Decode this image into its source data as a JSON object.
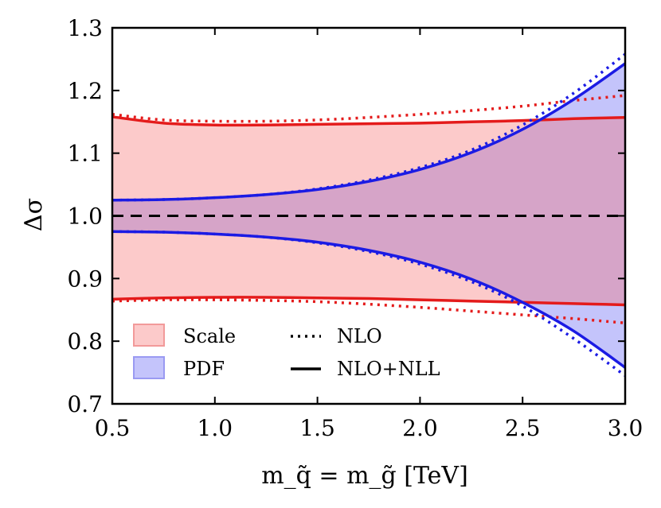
{
  "chart_data": {
    "type": "area",
    "xlabel": "m_q̃ = m_g̃ [TeV]",
    "ylabel": "Δσ",
    "xlim": [
      0.5,
      3.0
    ],
    "ylim": [
      0.7,
      1.3
    ],
    "x_ticks": [
      "0.5",
      "1.0",
      "1.5",
      "2.0",
      "2.5",
      "3.0"
    ],
    "y_ticks": [
      "0.7",
      "0.8",
      "0.9",
      "1.0",
      "1.1",
      "1.2",
      "1.3"
    ],
    "reference_line": 1.0,
    "colors": {
      "scale_fill": "#fccaca",
      "scale_line": "#e41b1b",
      "pdf_fill": "#c4c4fb",
      "pdf_line": "#1b1be4",
      "overlap_fill": "#d6a4c8",
      "reference": "#000000"
    },
    "x": [
      0.5,
      0.75,
      1.0,
      1.25,
      1.5,
      1.75,
      2.0,
      2.25,
      2.5,
      2.75,
      3.0
    ],
    "series": [
      {
        "name": "Scale upper NLO+NLL",
        "band": "Scale",
        "order": "NLO+NLL",
        "values": [
          1.158,
          1.148,
          1.145,
          1.145,
          1.146,
          1.147,
          1.148,
          1.15,
          1.152,
          1.155,
          1.157
        ]
      },
      {
        "name": "Scale upper NLO",
        "band": "Scale",
        "order": "NLO",
        "values": [
          1.162,
          1.153,
          1.151,
          1.151,
          1.153,
          1.157,
          1.162,
          1.168,
          1.175,
          1.184,
          1.192
        ]
      },
      {
        "name": "Scale lower NLO+NLL",
        "band": "Scale",
        "order": "NLO+NLL",
        "values": [
          0.867,
          0.869,
          0.87,
          0.87,
          0.869,
          0.868,
          0.866,
          0.864,
          0.862,
          0.86,
          0.858
        ]
      },
      {
        "name": "Scale lower NLO",
        "band": "Scale",
        "order": "NLO",
        "values": [
          0.864,
          0.866,
          0.866,
          0.865,
          0.863,
          0.859,
          0.854,
          0.848,
          0.842,
          0.836,
          0.829
        ]
      },
      {
        "name": "PDF upper NLO+NLL",
        "band": "PDF",
        "order": "NLO+NLL",
        "values": [
          1.025,
          1.026,
          1.029,
          1.034,
          1.042,
          1.055,
          1.074,
          1.101,
          1.138,
          1.186,
          1.243
        ]
      },
      {
        "name": "PDF upper NLO",
        "band": "PDF",
        "order": "NLO",
        "values": [
          1.025,
          1.026,
          1.029,
          1.034,
          1.043,
          1.057,
          1.077,
          1.105,
          1.145,
          1.196,
          1.258
        ]
      },
      {
        "name": "PDF lower NLO+NLL",
        "band": "PDF",
        "order": "NLO+NLL",
        "values": [
          0.975,
          0.974,
          0.971,
          0.966,
          0.958,
          0.945,
          0.926,
          0.899,
          0.862,
          0.816,
          0.758
        ]
      },
      {
        "name": "PDF lower NLO",
        "band": "PDF",
        "order": "NLO",
        "values": [
          0.975,
          0.974,
          0.971,
          0.966,
          0.957,
          0.943,
          0.923,
          0.895,
          0.856,
          0.804,
          0.745
        ]
      }
    ],
    "legend": {
      "position": "bottom-left",
      "items": [
        {
          "label": "Scale",
          "kind": "fill",
          "key": "scale"
        },
        {
          "label": "PDF",
          "kind": "fill",
          "key": "pdf"
        },
        {
          "label": "NLO",
          "kind": "dotted"
        },
        {
          "label": "NLO+NLL",
          "kind": "solid"
        }
      ]
    }
  }
}
